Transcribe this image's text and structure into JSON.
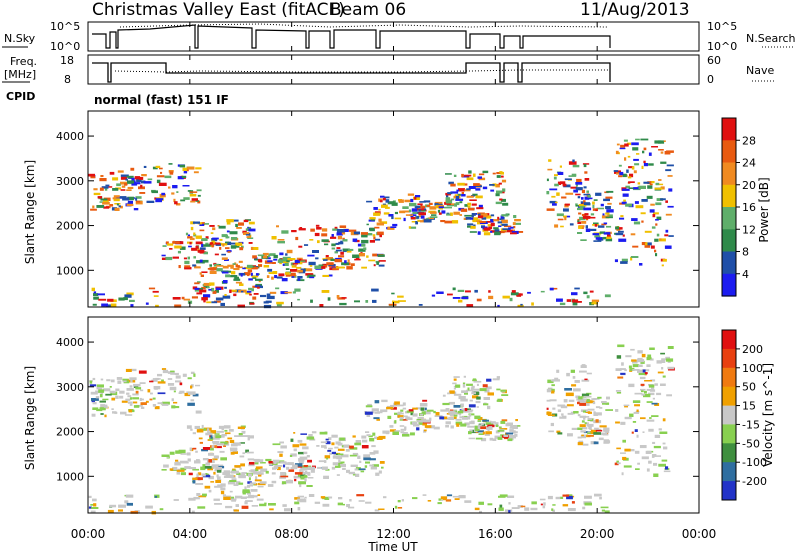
{
  "header": {
    "title": "Christmas Valley East (fitACF)",
    "beam": "Beam 06",
    "date": "11/Aug/2013"
  },
  "sky_panel": {
    "left_label": "N.Sky",
    "left_ticks": [
      "10^5",
      "10^0"
    ],
    "right_ticks": [
      "10^5",
      "10^0"
    ],
    "right_label": "N.Search"
  },
  "freq_panel": {
    "left_label_line1": "Freq.",
    "left_label_line2": "[MHz]",
    "left_ticks": [
      "18",
      "8"
    ],
    "right_ticks": [
      "60",
      "0"
    ],
    "right_label": "Nave"
  },
  "cpid": {
    "label": "CPID",
    "program": "normal (fast) 151 IF"
  },
  "x_axis": {
    "label": "Time UT",
    "tick_labels": [
      "00:00",
      "04:00",
      "08:00",
      "12:00",
      "16:00",
      "20:00",
      "00:00"
    ]
  },
  "chart_data": [
    {
      "type": "heatmap",
      "name": "Power",
      "ylabel": "Slant Range [km]",
      "xlabel": "",
      "ylim": [
        180,
        4560
      ],
      "y_ticks": [
        1000,
        2000,
        3000,
        4000
      ],
      "colorbar": {
        "label": "Power [dB]",
        "ticks": [
          "4",
          "8",
          "12",
          "16",
          "20",
          "24",
          "28"
        ],
        "colors": [
          "#1c1cf0",
          "#1f4fa8",
          "#2f8a4a",
          "#5fae6a",
          "#f0c000",
          "#f08a20",
          "#e85a10",
          "#e01010"
        ]
      }
    },
    {
      "type": "heatmap",
      "name": "Velocity",
      "ylabel": "Slant Range [km]",
      "xlabel": "Time UT",
      "ylim": [
        180,
        4560
      ],
      "y_ticks": [
        1000,
        2000,
        3000,
        4000
      ],
      "colorbar": {
        "label": "Velocity [m s^-1]",
        "ticks": [
          "200",
          "100",
          "50",
          "15",
          "-15",
          "-50",
          "-100",
          "-200"
        ],
        "colors": [
          "#2233c8",
          "#2f6ea0",
          "#3f8f3f",
          "#88d050",
          "#c8c8c8",
          "#f0a000",
          "#f07a10",
          "#e84010",
          "#e01010"
        ]
      }
    }
  ]
}
